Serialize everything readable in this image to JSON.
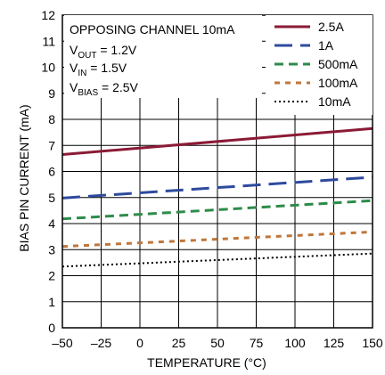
{
  "chart_data": {
    "type": "line",
    "xlabel": "TEMPERATURE (°C)",
    "ylabel": "BIAS PIN CURRENT (mA)",
    "xlim": [
      -50,
      150
    ],
    "ylim": [
      0,
      12
    ],
    "x_ticks": [
      "–50",
      "–25",
      "0",
      "25",
      "50",
      "75",
      "100",
      "125",
      "150"
    ],
    "y_ticks": [
      "0",
      "1",
      "2",
      "3",
      "4",
      "5",
      "6",
      "7",
      "8",
      "9",
      "10",
      "11",
      "12"
    ],
    "grid": true,
    "legend_position": "top-right",
    "annotations": {
      "line1": "OPPOSING CHANNEL 10mA",
      "line2_main": "V",
      "line2_sub": "OUT",
      "line2_rest": " = 1.2V",
      "line3_main": "V",
      "line3_sub": "IN",
      "line3_rest": " = 1.5V",
      "line4_main": "V",
      "line4_sub": "BIAS",
      "line4_rest": " = 2.5V"
    },
    "series": [
      {
        "name": "2.5A",
        "color": "#8b1a35",
        "dash": "solid",
        "x": [
          -50,
          150
        ],
        "y": [
          6.65,
          7.65
        ]
      },
      {
        "name": "1A",
        "color": "#2e4a9e",
        "dash": "long-dash",
        "x": [
          -50,
          150
        ],
        "y": [
          4.98,
          5.78
        ]
      },
      {
        "name": "500mA",
        "color": "#2e8b4a",
        "dash": "dash",
        "x": [
          -50,
          150
        ],
        "y": [
          4.18,
          4.88
        ]
      },
      {
        "name": "100mA",
        "color": "#c0763a",
        "dash": "short-dash",
        "x": [
          -50,
          150
        ],
        "y": [
          3.12,
          3.68
        ]
      },
      {
        "name": "10mA",
        "color": "#000000",
        "dash": "dot",
        "x": [
          -50,
          150
        ],
        "y": [
          2.35,
          2.85
        ]
      }
    ]
  }
}
